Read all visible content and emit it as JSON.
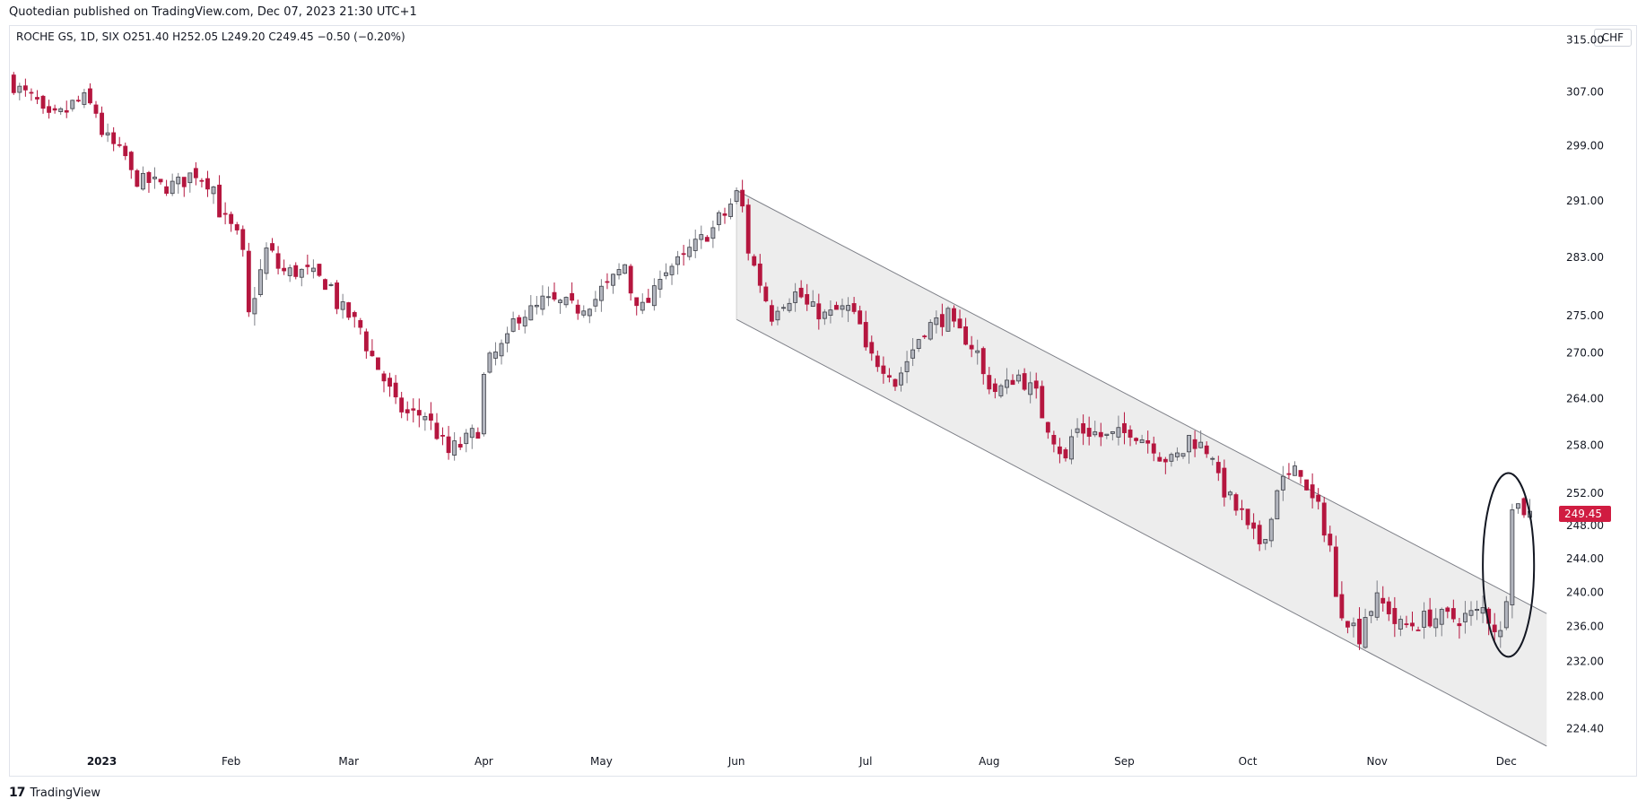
{
  "header": {
    "text": "Quotedian published on TradingView.com, Dec 07, 2023 21:30 UTC+1"
  },
  "symbol": {
    "info": "ROCHE GS, 1D, SIX  O251.40  H252.05  L249.20  C249.45  −0.50 (−0.20%)"
  },
  "currency": "CHF",
  "footer": {
    "logo": "17",
    "brand": "TradingView"
  },
  "colors": {
    "up": "#b2b5be",
    "down": "#b5163f",
    "channel": "#ededed",
    "line": "#7e8088",
    "price_tag": "#d01c41"
  },
  "chart_data": {
    "type": "candlestick",
    "scale": "log",
    "ylim": [
      222.5,
      317
    ],
    "y_ticks": [
      315,
      307,
      299,
      291,
      283,
      275,
      270,
      264,
      258,
      252,
      248,
      244,
      240,
      236,
      232,
      228,
      224.4
    ],
    "y_tick_labels": [
      "315.00",
      "307.00",
      "299.00",
      "291.00",
      "283.00",
      "275.00",
      "270.00",
      "264.00",
      "258.00",
      "252.00",
      "248.00",
      "244.00",
      "240.00",
      "236.00",
      "232.00",
      "228.00",
      "224.40"
    ],
    "x_labels": [
      {
        "label": "2023",
        "date": "2023-01-02",
        "bold": true
      },
      {
        "label": "Feb",
        "date": "2023-02-01"
      },
      {
        "label": "Mar",
        "date": "2023-03-01"
      },
      {
        "label": "Apr",
        "date": "2023-04-03"
      },
      {
        "label": "May",
        "date": "2023-05-01"
      },
      {
        "label": "Jun",
        "date": "2023-06-01"
      },
      {
        "label": "Jul",
        "date": "2023-07-03"
      },
      {
        "label": "Aug",
        "date": "2023-08-01"
      },
      {
        "label": "Sep",
        "date": "2023-09-01"
      },
      {
        "label": "Oct",
        "date": "2023-10-02"
      },
      {
        "label": "Nov",
        "date": "2023-11-01"
      },
      {
        "label": "Dec",
        "date": "2023-12-01"
      }
    ],
    "last_price": 249.45,
    "last_price_label": "249.45",
    "close_path": [
      [
        "2022-12-12",
        308
      ],
      [
        "2022-12-20",
        303
      ],
      [
        "2022-12-28",
        306
      ],
      [
        "2023-01-04",
        299
      ],
      [
        "2023-01-10",
        294
      ],
      [
        "2023-01-17",
        293
      ],
      [
        "2023-01-24",
        295
      ],
      [
        "2023-01-27",
        293
      ],
      [
        "2023-02-02",
        286
      ],
      [
        "2023-02-06",
        275
      ],
      [
        "2023-02-09",
        284
      ],
      [
        "2023-02-14",
        281
      ],
      [
        "2023-02-20",
        281
      ],
      [
        "2023-02-24",
        279
      ],
      [
        "2023-03-06",
        271
      ],
      [
        "2023-03-10",
        265
      ],
      [
        "2023-03-15",
        262
      ],
      [
        "2023-03-20",
        262
      ],
      [
        "2023-03-24",
        257
      ],
      [
        "2023-03-28",
        258
      ],
      [
        "2023-03-31",
        260
      ],
      [
        "2023-04-04",
        269
      ],
      [
        "2023-04-11",
        275
      ],
      [
        "2023-04-17",
        277
      ],
      [
        "2023-04-25",
        276
      ],
      [
        "2023-05-02",
        279
      ],
      [
        "2023-05-05",
        282
      ],
      [
        "2023-05-10",
        276
      ],
      [
        "2023-05-15",
        281
      ],
      [
        "2023-05-22",
        284
      ],
      [
        "2023-05-26",
        287
      ],
      [
        "2023-05-30",
        289
      ],
      [
        "2023-06-01",
        292
      ],
      [
        "2023-06-05",
        284
      ],
      [
        "2023-06-09",
        275
      ],
      [
        "2023-06-15",
        278
      ],
      [
        "2023-06-22",
        275
      ],
      [
        "2023-06-28",
        276
      ],
      [
        "2023-07-03",
        270
      ],
      [
        "2023-07-10",
        266
      ],
      [
        "2023-07-14",
        272
      ],
      [
        "2023-07-21",
        275
      ],
      [
        "2023-07-26",
        272
      ],
      [
        "2023-08-02",
        265
      ],
      [
        "2023-08-08",
        267
      ],
      [
        "2023-08-14",
        262
      ],
      [
        "2023-08-18",
        256
      ],
      [
        "2023-08-22",
        260
      ],
      [
        "2023-08-29",
        259
      ],
      [
        "2023-09-04",
        260
      ],
      [
        "2023-09-08",
        258
      ],
      [
        "2023-09-13",
        256
      ],
      [
        "2023-09-18",
        259
      ],
      [
        "2023-09-22",
        257
      ],
      [
        "2023-09-28",
        250
      ],
      [
        "2023-10-04",
        246
      ],
      [
        "2023-10-09",
        253
      ],
      [
        "2023-10-13",
        255
      ],
      [
        "2023-10-18",
        250
      ],
      [
        "2023-10-23",
        239
      ],
      [
        "2023-10-27",
        235
      ],
      [
        "2023-11-01",
        239
      ],
      [
        "2023-11-07",
        236
      ],
      [
        "2023-11-14",
        237
      ],
      [
        "2023-11-21",
        237
      ],
      [
        "2023-11-27",
        238
      ],
      [
        "2023-11-30",
        235
      ],
      [
        "2023-12-01",
        240
      ],
      [
        "2023-12-04",
        251
      ],
      [
        "2023-12-07",
        249.45
      ]
    ],
    "annotations": [
      {
        "type": "channel",
        "upper": [
          [
            "2023-06-01",
            292.5
          ],
          [
            "2023-12-11",
            237.5
          ]
        ],
        "lower": [
          [
            "2023-06-01",
            274.5
          ],
          [
            "2023-12-11",
            222.5
          ]
        ]
      },
      {
        "type": "ellipse",
        "x_range": [
          "2023-11-27",
          "2023-12-08"
        ],
        "y_range": [
          232.5,
          254.5
        ]
      }
    ]
  }
}
